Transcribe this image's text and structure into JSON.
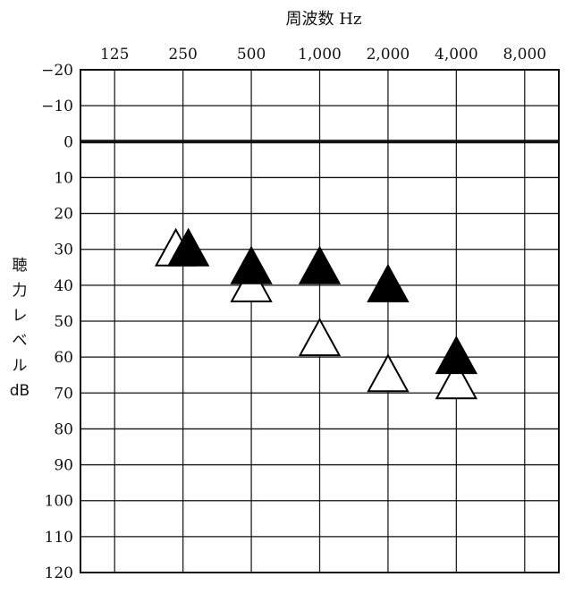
{
  "chart_data": {
    "type": "scatter",
    "xlabel": "周波数 Hz",
    "ylabel": [
      "聴",
      "力",
      "レ",
      "ベ",
      "ル",
      "dB"
    ],
    "x_ticks": [
      "125",
      "250",
      "500",
      "1,000",
      "2,000",
      "4,000",
      "8,000"
    ],
    "y_ticks": [
      "−20",
      "−10",
      "0",
      "10",
      "20",
      "30",
      "40",
      "50",
      "60",
      "70",
      "80",
      "90",
      "100",
      "110",
      "120"
    ],
    "y_tick_values": [
      -20,
      -10,
      0,
      10,
      20,
      30,
      40,
      50,
      60,
      70,
      80,
      90,
      100,
      110,
      120
    ],
    "ylim": [
      -20,
      120
    ],
    "y_inverted": true,
    "reference_line": 0,
    "grid": true,
    "series": [
      {
        "marker": "open-triangle",
        "color": "#ffffff",
        "points": [
          {
            "x": "250",
            "y": 30
          },
          {
            "x": "500",
            "y": 40
          },
          {
            "x": "1,000",
            "y": 55
          },
          {
            "x": "2,000",
            "y": 65
          },
          {
            "x": "4,000",
            "y": 67
          }
        ]
      },
      {
        "marker": "filled-triangle",
        "color": "#000000",
        "points": [
          {
            "x": "250",
            "y": 30
          },
          {
            "x": "500",
            "y": 35
          },
          {
            "x": "1,000",
            "y": 35
          },
          {
            "x": "2,000",
            "y": 40
          },
          {
            "x": "4,000",
            "y": 60
          }
        ]
      }
    ]
  }
}
